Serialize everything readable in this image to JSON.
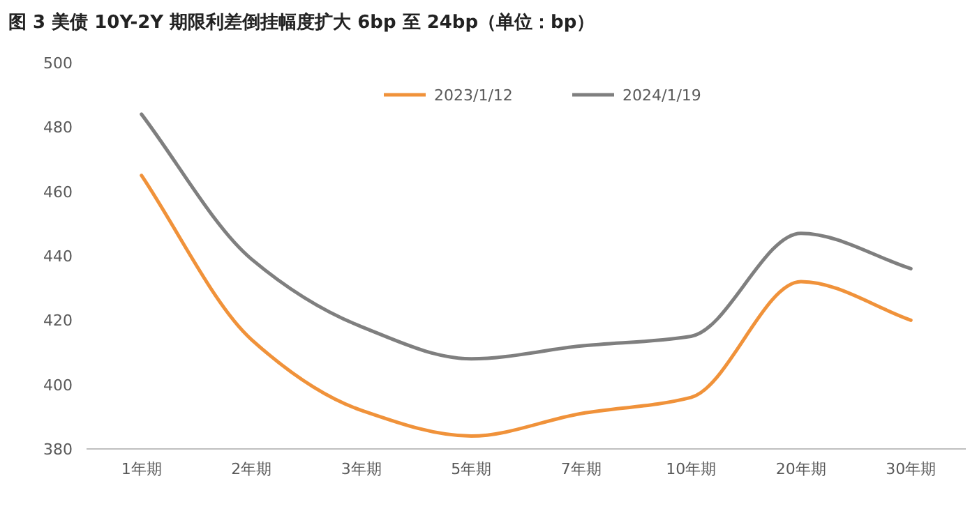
{
  "chart_data": {
    "type": "line",
    "title": "图 3  美债 10Y-2Y 期限利差倒挂幅度扩大 6bp 至 24bp（单位：bp）",
    "categories": [
      "1年期",
      "2年期",
      "3年期",
      "5年期",
      "7年期",
      "10年期",
      "20年期",
      "30年期"
    ],
    "series": [
      {
        "name": "2023/1/12",
        "color": "#f0923a",
        "values": [
          465,
          414,
          392,
          384,
          391,
          396,
          432,
          420
        ]
      },
      {
        "name": "2024/1/19",
        "color": "#7f7f7f",
        "values": [
          484,
          439,
          418,
          408,
          412,
          415,
          447,
          436
        ]
      }
    ],
    "ylim": [
      380,
      500
    ],
    "yticks": [
      380,
      400,
      420,
      440,
      460,
      480,
      500
    ],
    "grid": false,
    "legend": "top",
    "marker": "none",
    "line_style": "solid"
  }
}
